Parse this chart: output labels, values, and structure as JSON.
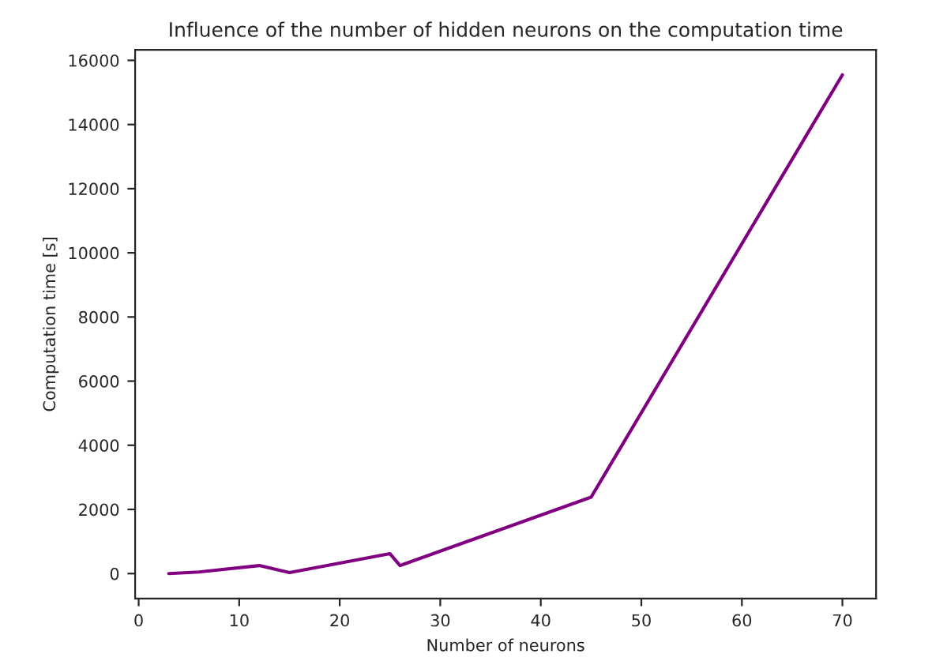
{
  "chart_data": {
    "type": "line",
    "title": "Influence of the number of hidden neurons on the computation time",
    "xlabel": "Number of neurons",
    "ylabel": "Computation time [s]",
    "x": [
      3,
      6,
      12,
      15,
      25,
      26,
      45,
      70
    ],
    "series": [
      {
        "color": "#800080",
        "values": [
          0,
          50,
          250,
          30,
          620,
          250,
          2380,
          15550
        ]
      }
    ],
    "xlim": [
      -0.35,
      73.35
    ],
    "ylim": [
      -777,
      16327
    ],
    "xticks": [
      0,
      10,
      20,
      30,
      40,
      50,
      60,
      70
    ],
    "yticks": [
      0,
      2000,
      4000,
      6000,
      8000,
      10000,
      12000,
      14000,
      16000
    ],
    "grid": false
  }
}
